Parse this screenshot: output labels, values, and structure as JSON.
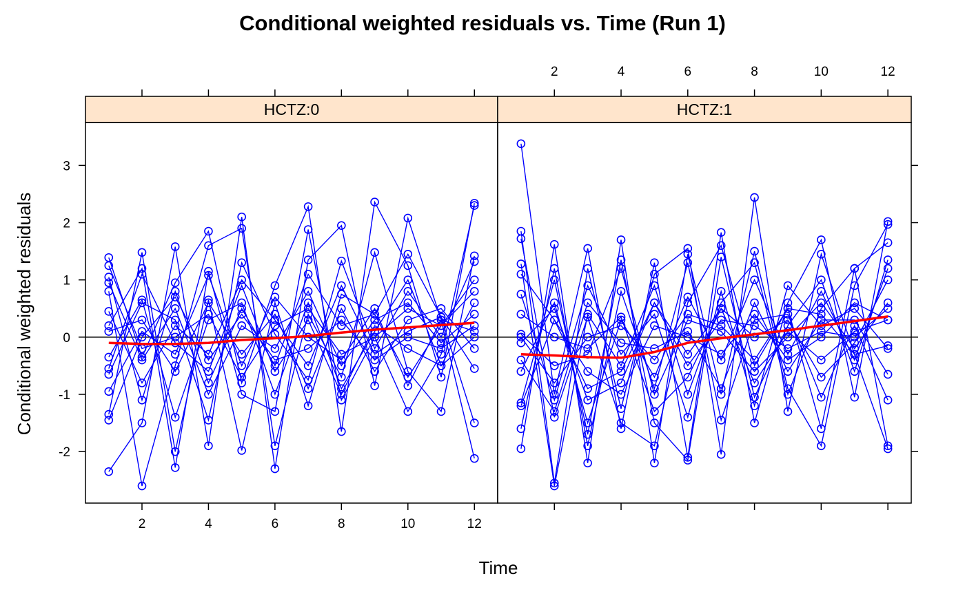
{
  "chart_data": {
    "type": "line",
    "title": "Conditional weighted residuals vs. Time (Run 1)",
    "xlabel": "Time",
    "ylabel": "Conditional weighted residuals",
    "xlim": [
      0.3,
      12.7
    ],
    "ylim": [
      -2.9,
      3.75
    ],
    "x_ticks": [
      2,
      4,
      6,
      8,
      10,
      12
    ],
    "y_ticks": [
      -2,
      -1,
      0,
      1,
      2,
      3
    ],
    "reference_line_y": 0,
    "grid": false,
    "colors": {
      "points": "#0000ff",
      "smooth": "#ff0000",
      "strip": "#ffe5cc",
      "reference": "#000000"
    },
    "panels": [
      {
        "label": "HCTZ:0",
        "smooth": {
          "x": [
            1,
            2,
            3,
            4,
            5,
            6,
            7,
            8,
            9,
            10,
            11,
            12
          ],
          "y": [
            -0.1,
            -0.12,
            -0.12,
            -0.1,
            -0.05,
            -0.02,
            0.02,
            0.08,
            0.13,
            0.17,
            0.21,
            0.25
          ]
        },
        "series": [
          {
            "x": [
              1,
              2,
              3,
              4,
              5,
              6,
              7,
              8,
              9,
              10,
              11,
              12
            ],
            "y": [
              1.39,
              -0.35,
              0.95,
              1.85,
              -0.8,
              0.9,
              2.28,
              -1.65,
              2.36,
              1.25,
              -0.7,
              2.34
            ]
          },
          {
            "x": [
              1,
              2,
              3,
              4,
              5,
              6,
              7,
              8,
              9,
              10,
              11,
              12
            ],
            "y": [
              -2.35,
              -1.5,
              1.58,
              -1.9,
              2.1,
              -2.3,
              1.35,
              1.95,
              -0.85,
              2.08,
              0.3,
              -2.12
            ]
          },
          {
            "x": [
              1,
              2,
              3,
              4,
              5,
              6,
              7,
              8,
              9,
              10,
              11,
              12
            ],
            "y": [
              0.8,
              -2.6,
              -0.5,
              1.6,
              1.9,
              -1.9,
              0.4,
              -0.7,
              1.48,
              -0.6,
              -1.3,
              1.42
            ]
          },
          {
            "x": [
              1,
              2,
              3,
              4,
              5,
              6,
              7,
              8,
              9,
              10,
              11,
              12
            ],
            "y": [
              -1.35,
              1.48,
              -2.0,
              0.65,
              -1.98,
              0.6,
              -1.2,
              0.75,
              0.4,
              1.45,
              0.35,
              -1.5
            ]
          },
          {
            "x": [
              1,
              2,
              3,
              4,
              5,
              6,
              7,
              8,
              9,
              10,
              11,
              12
            ],
            "y": [
              0.2,
              1.2,
              -2.28,
              1.15,
              -1.0,
              -1.3,
              1.88,
              -1.1,
              0.0,
              -1.3,
              -0.3,
              2.3
            ]
          },
          {
            "x": [
              1,
              2,
              3,
              4,
              5,
              6,
              7,
              8,
              9,
              10,
              11,
              12
            ],
            "y": [
              -0.65,
              0.6,
              0.3,
              -1.45,
              1.3,
              0.05,
              -0.75,
              1.33,
              -0.2,
              0.8,
              0.0,
              1.32
            ]
          },
          {
            "x": [
              1,
              2,
              3,
              4,
              5,
              6,
              7,
              8,
              9,
              10,
              11,
              12
            ],
            "y": [
              1.05,
              -1.1,
              0.8,
              -0.8,
              0.5,
              -0.5,
              1.1,
              0.2,
              0.4,
              -0.7,
              0.2,
              0.8
            ]
          },
          {
            "x": [
              1,
              2,
              3,
              4,
              5,
              6,
              7,
              8,
              9,
              10,
              11,
              12
            ],
            "y": [
              -0.35,
              0.65,
              -1.4,
              0.3,
              0.6,
              -1.0,
              0.6,
              -0.9,
              0.1,
              1.0,
              -0.5,
              0.6
            ]
          },
          {
            "x": [
              1,
              2,
              3,
              4,
              5,
              6,
              7,
              8,
              9,
              10,
              11,
              12
            ],
            "y": [
              0.45,
              -0.8,
              0.2,
              -0.3,
              1.0,
              0.3,
              -0.5,
              0.9,
              -0.3,
              0.1,
              0.35,
              -0.55
            ]
          },
          {
            "x": [
              1,
              2,
              3,
              4,
              5,
              6,
              7,
              8,
              9,
              10,
              11,
              12
            ],
            "y": [
              -0.95,
              0.1,
              -0.3,
              1.08,
              -0.5,
              0.7,
              0.0,
              -0.4,
              0.5,
              -0.85,
              0.3,
              0.1
            ]
          },
          {
            "x": [
              1,
              2,
              3,
              4,
              5,
              6,
              7,
              8,
              9,
              10,
              11,
              12
            ],
            "y": [
              0.95,
              -0.4,
              0.5,
              -1.0,
              0.2,
              -0.2,
              0.8,
              -0.5,
              0.3,
              0.6,
              -0.1,
              0.4
            ]
          },
          {
            "x": [
              1,
              2,
              3,
              4,
              5,
              6,
              7,
              8,
              9,
              10,
              11,
              12
            ],
            "y": [
              0.1,
              0.3,
              -0.6,
              0.6,
              -0.3,
              0.4,
              -0.9,
              0.5,
              -0.6,
              0.3,
              0.5,
              -0.2
            ]
          },
          {
            "x": [
              1,
              2,
              3,
              4,
              5,
              6,
              7,
              8,
              9,
              10,
              11,
              12
            ],
            "y": [
              -0.55,
              1.1,
              -0.1,
              -0.6,
              0.9,
              -0.6,
              0.3,
              -1.0,
              0.2,
              -0.2,
              -0.5,
              0.0
            ]
          },
          {
            "x": [
              1,
              2,
              3,
              4,
              5,
              6,
              7,
              8,
              9,
              10,
              11,
              12
            ],
            "y": [
              1.25,
              -0.2,
              0.0,
              0.4,
              -0.7,
              0.2,
              0.5,
              -0.3,
              0.0,
              0.5,
              0.2,
              1.0
            ]
          },
          {
            "x": [
              1,
              2,
              3,
              4,
              5,
              6,
              7,
              8,
              9,
              10,
              11,
              12
            ],
            "y": [
              -1.45,
              0.0,
              0.7,
              -0.4,
              0.4,
              -0.4,
              -0.2,
              0.3,
              -0.4,
              0.0,
              -0.2,
              0.2
            ]
          }
        ]
      },
      {
        "label": "HCTZ:1",
        "smooth": {
          "x": [
            1,
            2,
            3,
            4,
            5,
            6,
            7,
            8,
            9,
            10,
            11,
            12
          ],
          "y": [
            -0.3,
            -0.32,
            -0.35,
            -0.36,
            -0.26,
            -0.1,
            -0.02,
            0.05,
            0.12,
            0.2,
            0.28,
            0.36
          ]
        },
        "series": [
          {
            "x": [
              1,
              2,
              3,
              4,
              5,
              6,
              7,
              8,
              9,
              10,
              11,
              12
            ],
            "y": [
              3.38,
              -1.0,
              1.55,
              -1.6,
              1.3,
              -2.1,
              1.83,
              -1.5,
              0.6,
              1.7,
              -1.05,
              2.02
            ]
          },
          {
            "x": [
              1,
              2,
              3,
              4,
              5,
              6,
              7,
              8,
              9,
              10,
              11,
              12
            ],
            "y": [
              1.85,
              -2.55,
              1.2,
              -1.25,
              1.1,
              1.55,
              -2.05,
              2.44,
              -1.3,
              1.45,
              -0.3,
              -1.95
            ]
          },
          {
            "x": [
              1,
              2,
              3,
              4,
              5,
              6,
              7,
              8,
              9,
              10,
              11,
              12
            ],
            "y": [
              -1.95,
              1.62,
              -2.2,
              1.7,
              -2.2,
              1.45,
              -1.0,
              1.5,
              -0.9,
              -1.9,
              0.9,
              1.97
            ]
          },
          {
            "x": [
              1,
              2,
              3,
              4,
              5,
              6,
              7,
              8,
              9,
              10,
              11,
              12
            ],
            "y": [
              1.72,
              -1.4,
              0.35,
              -1.5,
              -1.9,
              0.6,
              1.6,
              -0.5,
              0.5,
              -1.6,
              1.2,
              1.65
            ]
          },
          {
            "x": [
              1,
              2,
              3,
              4,
              5,
              6,
              7,
              8,
              9,
              10,
              11,
              12
            ],
            "y": [
              -1.15,
              1.0,
              -1.7,
              1.35,
              -1.5,
              -2.15,
              1.4,
              -1.05,
              0.2,
              1.0,
              -0.6,
              1.35
            ]
          },
          {
            "x": [
              1,
              2,
              3,
              4,
              5,
              6,
              7,
              8,
              9,
              10,
              11,
              12
            ],
            "y": [
              1.28,
              -2.6,
              0.4,
              -0.5,
              0.9,
              -1.0,
              0.6,
              1.3,
              -1.0,
              0.5,
              1.2,
              -1.9
            ]
          },
          {
            "x": [
              1,
              2,
              3,
              4,
              5,
              6,
              7,
              8,
              9,
              10,
              11,
              12
            ],
            "y": [
              -1.6,
              1.2,
              -1.9,
              0.8,
              -0.9,
              1.3,
              -1.45,
              0.3,
              0.4,
              -1.05,
              0.2,
              -1.1
            ]
          },
          {
            "x": [
              1,
              2,
              3,
              4,
              5,
              6,
              7,
              8,
              9,
              10,
              11,
              12
            ],
            "y": [
              0.75,
              -1.1,
              0.9,
              -0.3,
              0.4,
              -1.4,
              0.8,
              -1.2,
              0.9,
              0.2,
              0.5,
              -0.2
            ]
          },
          {
            "x": [
              1,
              2,
              3,
              4,
              5,
              6,
              7,
              8,
              9,
              10,
              11,
              12
            ],
            "y": [
              -0.6,
              0.6,
              -1.5,
              0.3,
              -0.7,
              0.7,
              -0.4,
              1.0,
              -0.3,
              0.8,
              -0.4,
              1.2
            ]
          },
          {
            "x": [
              1,
              2,
              3,
              4,
              5,
              6,
              7,
              8,
              9,
              10,
              11,
              12
            ],
            "y": [
              0.05,
              -0.5,
              -0.3,
              1.2,
              -1.0,
              0.3,
              0.1,
              -0.6,
              0.0,
              0.6,
              -0.2,
              0.6
            ]
          },
          {
            "x": [
              1,
              2,
              3,
              4,
              5,
              6,
              7,
              8,
              9,
              10,
              11,
              12
            ],
            "y": [
              1.1,
              0.3,
              -0.9,
              -0.6,
              0.6,
              -0.3,
              0.5,
              -0.8,
              0.1,
              -0.4,
              0.1,
              0.3
            ]
          },
          {
            "x": [
              1,
              2,
              3,
              4,
              5,
              6,
              7,
              8,
              9,
              10,
              11,
              12
            ],
            "y": [
              -0.4,
              -1.3,
              0.6,
              -0.1,
              -0.2,
              0.1,
              -0.9,
              0.6,
              -0.6,
              0.3,
              0.3,
              -0.65
            ]
          },
          {
            "x": [
              1,
              2,
              3,
              4,
              5,
              6,
              7,
              8,
              9,
              10,
              11,
              12
            ],
            "y": [
              0.4,
              0.0,
              -0.2,
              0.35,
              -1.3,
              -0.7,
              0.5,
              0.0,
              0.3,
              -0.7,
              -0.1,
              1.0
            ]
          },
          {
            "x": [
              1,
              2,
              3,
              4,
              5,
              6,
              7,
              8,
              9,
              10,
              11,
              12
            ],
            "y": [
              -1.2,
              0.3,
              -0.6,
              -1.0,
              0.2,
              0.0,
              -0.3,
              0.4,
              -0.4,
              0.0,
              0.6,
              0.3
            ]
          },
          {
            "x": [
              1,
              2,
              3,
              4,
              5,
              6,
              7,
              8,
              9,
              10,
              11,
              12
            ],
            "y": [
              0.0,
              -0.8,
              0.0,
              0.2,
              -0.4,
              0.4,
              0.2,
              -0.4,
              0.5,
              0.4,
              -0.3,
              -0.15
            ]
          },
          {
            "x": [
              1,
              2,
              3,
              4,
              5,
              6,
              7,
              8,
              9,
              10,
              11,
              12
            ],
            "y": [
              -0.1,
              0.5,
              -1.1,
              -0.8,
              0.6,
              -0.5,
              0.3,
              0.2,
              -0.2,
              0.1,
              0.0,
              0.5
            ]
          }
        ]
      }
    ]
  }
}
